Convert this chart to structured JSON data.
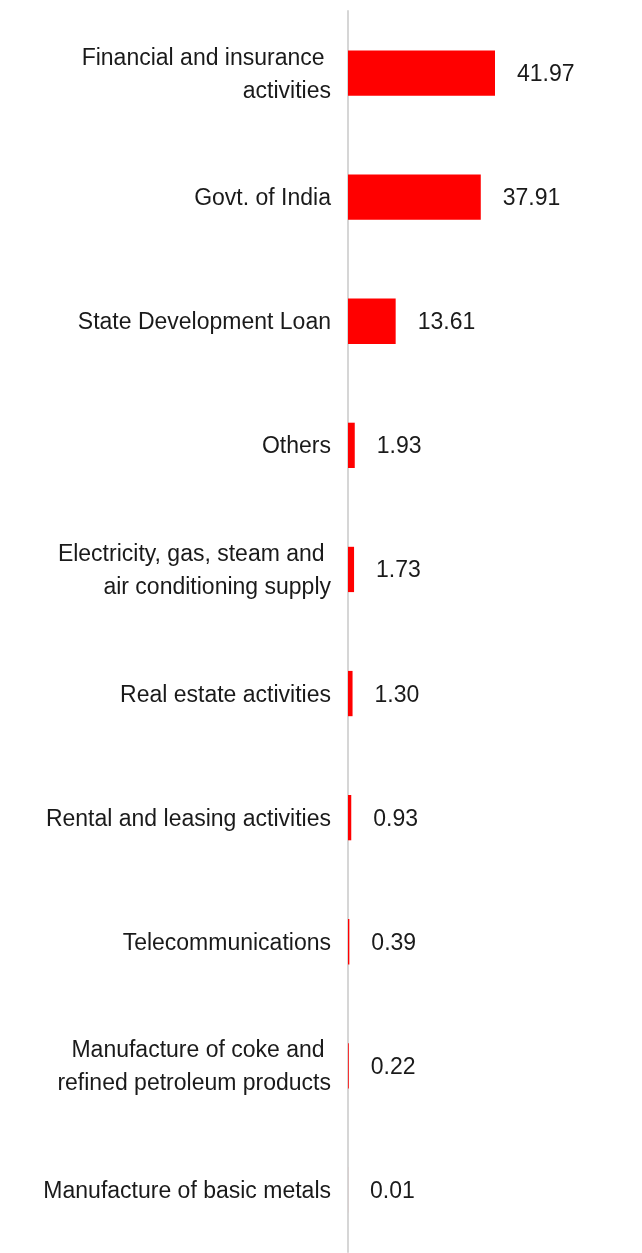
{
  "chart_data": {
    "type": "bar",
    "orientation": "horizontal",
    "categories": [
      "Financial and insurance activities",
      "Govt. of India",
      "State Development Loan",
      "Others",
      "Electricity, gas, steam and air conditioning supply",
      "Real estate activities",
      "Rental and leasing activities",
      "Telecommunications",
      "Manufacture of coke and refined petroleum products",
      "Manufacture of basic metals"
    ],
    "values": [
      41.97,
      37.91,
      13.61,
      1.93,
      1.73,
      1.3,
      0.93,
      0.39,
      0.22,
      0.01
    ],
    "color": "#ff0000",
    "value_labels": [
      "41.97",
      "37.91",
      "13.61",
      "1.93",
      "1.73",
      "1.30",
      "0.93",
      "0.39",
      "0.22",
      "0.01"
    ],
    "tick_labels": "y"
  }
}
